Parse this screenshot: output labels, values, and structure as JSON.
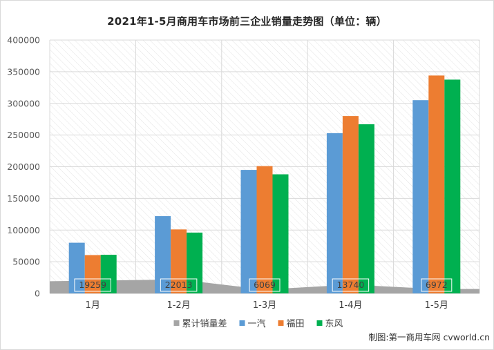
{
  "chart_data": {
    "type": "bar",
    "title": "2021年1-5月商用车市场前三企业销量走势图（单位：辆）",
    "categories": [
      "1月",
      "1-2月",
      "1-3月",
      "1-4月",
      "1-5月"
    ],
    "series": [
      {
        "name": "一汽",
        "values": [
          80000,
          122000,
          195000,
          253000,
          305000
        ],
        "color": "#5b9bd5"
      },
      {
        "name": "福田",
        "values": [
          60500,
          101000,
          201000,
          280000,
          344000
        ],
        "color": "#ed7d31"
      },
      {
        "name": "东风",
        "values": [
          61000,
          96000,
          188000,
          267000,
          337500
        ],
        "color": "#00b050"
      }
    ],
    "area_series": {
      "name": "累计销量差",
      "values": [
        19259,
        22013,
        6069,
        13740,
        6972
      ],
      "color": "#a5a5a5",
      "labels": [
        "19259",
        "22013",
        "6069",
        "13740",
        "6972"
      ]
    },
    "ylim": [
      0,
      400000
    ],
    "yticks": [
      0,
      50000,
      100000,
      150000,
      200000,
      250000,
      300000,
      350000,
      400000
    ],
    "ytick_labels": [
      "0",
      "50000",
      "100000",
      "150000",
      "200000",
      "250000",
      "300000",
      "350000",
      "400000"
    ],
    "legend_position": "bottom",
    "grid": true
  },
  "source": "制图:第一商用车网 cvworld.cn"
}
